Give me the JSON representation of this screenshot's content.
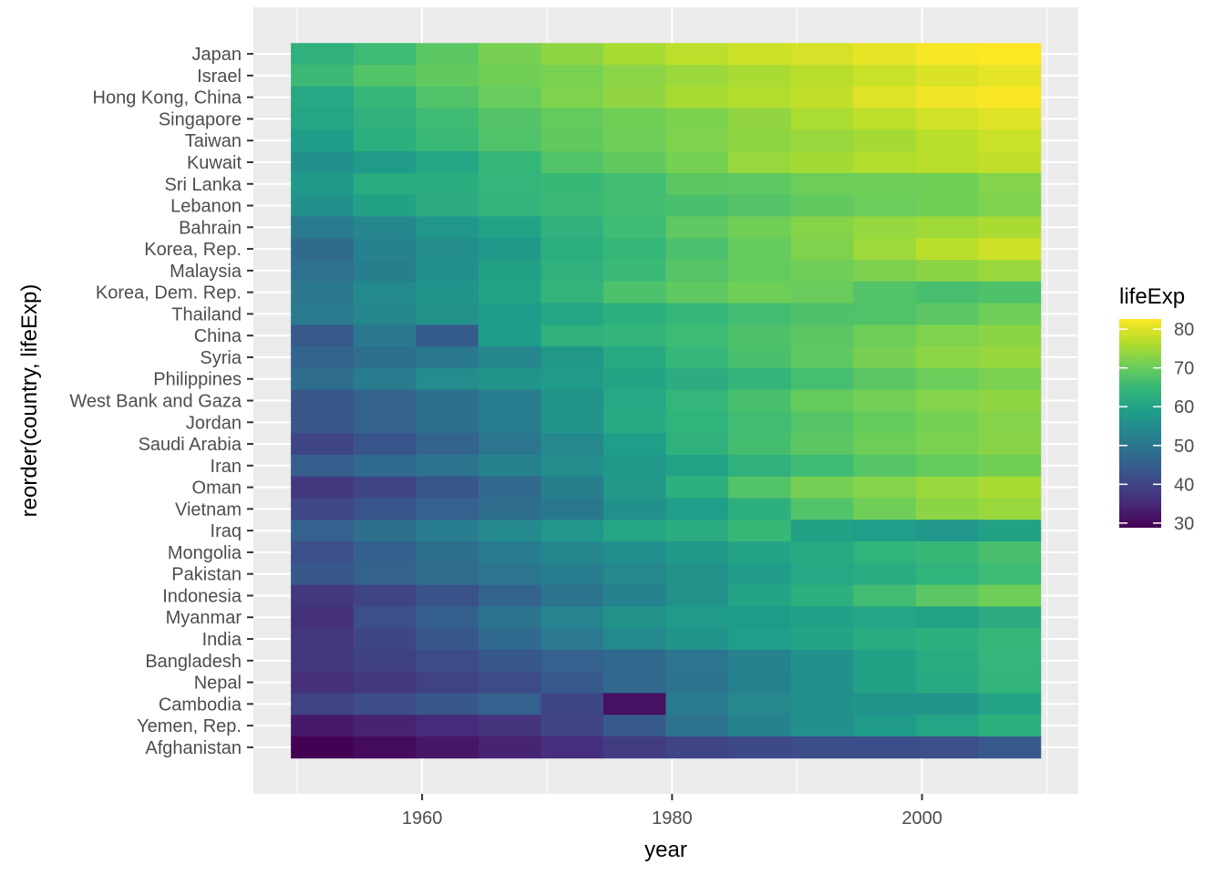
{
  "chart_data": {
    "type": "heatmap",
    "title": "",
    "xlabel": "year",
    "ylabel": "reorder(country, lifeExp)",
    "x_ticks": [
      1960,
      1980,
      2000
    ],
    "xlim": [
      1949.5,
      2009.5
    ],
    "years": [
      1952,
      1957,
      1962,
      1967,
      1972,
      1977,
      1982,
      1987,
      1992,
      1997,
      2002,
      2007
    ],
    "fill_scale": {
      "name": "viridis",
      "legend_title": "lifeExp",
      "legend_position": "right",
      "range": [
        28.8,
        82.6
      ],
      "breaks": [
        30,
        40,
        50,
        60,
        70,
        80
      ]
    },
    "grid": true,
    "rows": [
      {
        "country": "Japan",
        "values": [
          63.0,
          65.5,
          68.7,
          71.4,
          73.4,
          75.4,
          77.1,
          78.7,
          79.4,
          80.7,
          82.0,
          82.6
        ]
      },
      {
        "country": "Israel",
        "values": [
          65.4,
          67.8,
          69.4,
          70.8,
          71.6,
          73.1,
          74.5,
          75.6,
          76.9,
          78.3,
          79.7,
          80.7
        ]
      },
      {
        "country": "Hong Kong, China",
        "values": [
          60.96,
          64.75,
          67.65,
          70.0,
          72.0,
          73.6,
          75.45,
          76.2,
          77.6,
          80.0,
          81.5,
          82.2
        ]
      },
      {
        "country": "Singapore",
        "values": [
          60.4,
          63.2,
          65.8,
          67.9,
          69.5,
          70.8,
          71.8,
          73.6,
          75.8,
          77.2,
          78.8,
          80.0
        ]
      },
      {
        "country": "Taiwan",
        "values": [
          58.5,
          62.4,
          65.2,
          67.5,
          69.4,
          70.6,
          72.2,
          73.4,
          74.3,
          75.3,
          76.99,
          78.4
        ]
      },
      {
        "country": "Kuwait",
        "values": [
          55.6,
          58.0,
          60.5,
          64.6,
          67.7,
          69.3,
          71.3,
          74.2,
          75.2,
          76.2,
          76.9,
          77.6
        ]
      },
      {
        "country": "Sri Lanka",
        "values": [
          57.6,
          61.5,
          62.2,
          64.3,
          65.0,
          65.9,
          68.8,
          69.0,
          70.4,
          70.5,
          70.8,
          72.4
        ]
      },
      {
        "country": "Lebanon",
        "values": [
          55.9,
          59.5,
          62.1,
          63.9,
          65.4,
          66.1,
          66.98,
          67.9,
          69.3,
          70.3,
          71.0,
          72.0
        ]
      },
      {
        "country": "Bahrain",
        "values": [
          50.9,
          53.8,
          56.9,
          59.9,
          63.3,
          65.6,
          69.1,
          70.8,
          72.6,
          73.9,
          74.8,
          75.6
        ]
      },
      {
        "country": "Korea, Rep.",
        "values": [
          47.5,
          52.7,
          55.3,
          57.7,
          62.6,
          64.8,
          67.1,
          69.8,
          72.2,
          74.6,
          77.0,
          78.6
        ]
      },
      {
        "country": "Malaysia",
        "values": [
          48.5,
          52.1,
          55.7,
          59.4,
          63.0,
          65.3,
          68.0,
          69.5,
          70.7,
          71.9,
          73.0,
          74.2
        ]
      },
      {
        "country": "Korea, Dem. Rep.",
        "values": [
          50.1,
          54.1,
          56.7,
          59.9,
          64.0,
          67.2,
          69.1,
          70.6,
          69.98,
          67.7,
          66.7,
          67.3
        ]
      },
      {
        "country": "Thailand",
        "values": [
          50.8,
          53.6,
          56.1,
          58.3,
          60.4,
          62.5,
          64.6,
          66.1,
          67.3,
          67.5,
          68.6,
          70.6
        ]
      },
      {
        "country": "China",
        "values": [
          44.0,
          50.5,
          44.5,
          58.4,
          63.1,
          63.97,
          65.5,
          67.3,
          68.7,
          70.4,
          72.0,
          73.0
        ]
      },
      {
        "country": "Syria",
        "values": [
          45.9,
          48.3,
          50.3,
          53.7,
          57.3,
          61.2,
          64.6,
          66.97,
          69.2,
          71.5,
          73.1,
          74.1
        ]
      },
      {
        "country": "Philippines",
        "values": [
          47.8,
          51.3,
          54.8,
          56.4,
          58.1,
          60.1,
          62.1,
          64.2,
          66.5,
          68.6,
          70.3,
          71.7
        ]
      },
      {
        "country": "West Bank and Gaza",
        "values": [
          43.2,
          45.7,
          48.1,
          51.6,
          56.5,
          60.8,
          64.4,
          67.0,
          69.7,
          71.1,
          72.4,
          73.4
        ]
      },
      {
        "country": "Jordan",
        "values": [
          43.2,
          45.7,
          48.1,
          51.6,
          56.5,
          61.1,
          63.7,
          65.9,
          68.0,
          69.8,
          71.3,
          72.5
        ]
      },
      {
        "country": "Saudi Arabia",
        "values": [
          39.9,
          42.9,
          45.9,
          49.9,
          53.9,
          58.7,
          63.0,
          66.3,
          68.8,
          70.5,
          71.6,
          72.8
        ]
      },
      {
        "country": "Iran",
        "values": [
          44.9,
          47.2,
          49.3,
          52.5,
          55.2,
          57.7,
          59.6,
          63.0,
          65.7,
          68.0,
          69.5,
          71.0
        ]
      },
      {
        "country": "Oman",
        "values": [
          37.6,
          40.1,
          43.2,
          46.99,
          52.1,
          57.4,
          62.7,
          67.7,
          71.2,
          72.5,
          74.2,
          75.6
        ]
      },
      {
        "country": "Vietnam",
        "values": [
          40.4,
          42.9,
          45.4,
          47.8,
          50.3,
          55.8,
          58.8,
          62.8,
          67.7,
          70.7,
          73.0,
          74.2
        ]
      },
      {
        "country": "Iraq",
        "values": [
          45.3,
          48.4,
          51.5,
          54.5,
          56.9,
          60.4,
          62.0,
          65.0,
          59.5,
          58.8,
          57.0,
          59.5
        ]
      },
      {
        "country": "Mongolia",
        "values": [
          42.2,
          45.2,
          48.3,
          51.3,
          53.8,
          55.5,
          57.5,
          60.2,
          61.3,
          63.6,
          65.0,
          66.8
        ]
      },
      {
        "country": "Pakistan",
        "values": [
          43.4,
          45.6,
          47.7,
          49.8,
          51.9,
          54.0,
          56.2,
          58.2,
          60.8,
          61.8,
          63.6,
          65.5
        ]
      },
      {
        "country": "Indonesia",
        "values": [
          37.5,
          39.9,
          42.5,
          46.0,
          49.2,
          52.7,
          56.2,
          60.1,
          62.7,
          66.0,
          68.6,
          70.7
        ]
      },
      {
        "country": "Myanmar",
        "values": [
          36.3,
          41.9,
          45.1,
          49.4,
          53.1,
          56.1,
          58.1,
          58.3,
          59.3,
          60.3,
          59.9,
          62.1
        ]
      },
      {
        "country": "India",
        "values": [
          37.4,
          40.2,
          43.6,
          47.2,
          50.7,
          54.2,
          56.6,
          58.6,
          60.2,
          61.8,
          62.9,
          64.7
        ]
      },
      {
        "country": "Bangladesh",
        "values": [
          37.5,
          39.3,
          41.2,
          43.5,
          45.3,
          46.9,
          50.0,
          52.8,
          56.0,
          59.4,
          62.0,
          64.1
        ]
      },
      {
        "country": "Nepal",
        "values": [
          36.2,
          37.7,
          39.4,
          41.2,
          43.97,
          46.7,
          49.6,
          52.5,
          55.7,
          59.4,
          61.3,
          63.8
        ]
      },
      {
        "country": "Cambodia",
        "values": [
          39.4,
          41.4,
          43.4,
          45.4,
          40.3,
          31.2,
          51.0,
          53.9,
          55.8,
          56.5,
          56.8,
          59.7
        ]
      },
      {
        "country": "Yemen, Rep.",
        "values": [
          32.5,
          33.97,
          35.2,
          37.0,
          39.8,
          44.2,
          49.1,
          52.9,
          55.6,
          58.0,
          60.3,
          62.7
        ]
      },
      {
        "country": "Afghanistan",
        "values": [
          28.8,
          30.3,
          32.0,
          34.0,
          36.1,
          38.4,
          39.9,
          40.8,
          41.7,
          41.8,
          42.1,
          43.8
        ]
      }
    ]
  }
}
